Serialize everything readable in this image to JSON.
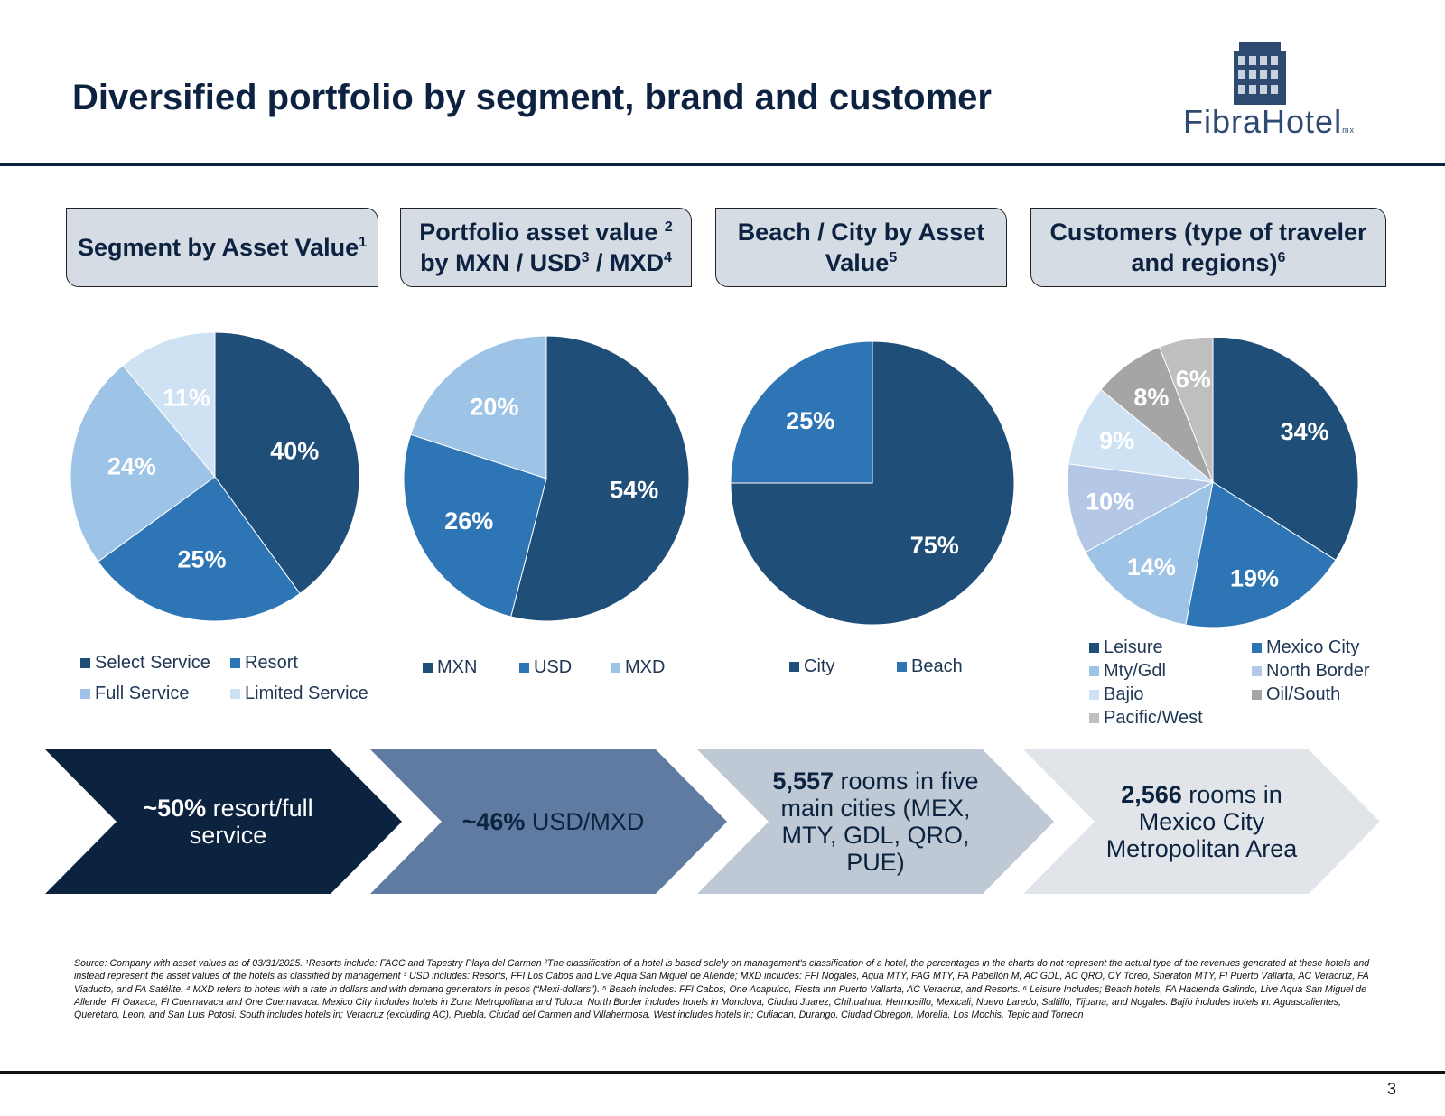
{
  "title": "Diversified portfolio by segment, brand and customer",
  "logo": {
    "text": "FibraHotel",
    "suffix": "mx"
  },
  "colors": {
    "navy": "#1f4e79",
    "blue": "#2e75b6",
    "light_blue": "#9dc3e6",
    "pale_blue": "#bdd7ee",
    "lavender": "#b4c7e7",
    "very_light": "#cfe2f3",
    "gray": "#a5a5a5",
    "light_gray": "#bfbfbf"
  },
  "headers": [
    {
      "text": "Segment by Asset Value",
      "sup": "1"
    },
    {
      "text": "Portfolio asset value ",
      "sup1": "2",
      "text2": " by MXN / USD",
      "sup2": "3",
      "text3": " / MXD",
      "sup3": "4"
    },
    {
      "text": "Beach / City by Asset Value",
      "sup": "5"
    },
    {
      "text": "Customers (type of traveler and regions)",
      "sup": "6"
    }
  ],
  "chart_data": [
    {
      "type": "pie",
      "title": "Segment by Asset Value",
      "categories": [
        "Select Service",
        "Resort",
        "Full Service",
        "Limited Service"
      ],
      "values": [
        40,
        25,
        24,
        11
      ],
      "labels": [
        "40%",
        "25%",
        "24%",
        "11%"
      ],
      "colors": [
        "#1f4e79",
        "#2e75b6",
        "#9dc3e6",
        "#cfe2f3"
      ]
    },
    {
      "type": "pie",
      "title": "Portfolio asset value by MXN / USD / MXD",
      "categories": [
        "MXN",
        "USD",
        "MXD"
      ],
      "values": [
        54,
        26,
        20
      ],
      "labels": [
        "54%",
        "26%",
        "20%"
      ],
      "colors": [
        "#1f4e79",
        "#2e75b6",
        "#9dc3e6"
      ]
    },
    {
      "type": "pie",
      "title": "Beach / City by Asset Value",
      "categories": [
        "City",
        "Beach"
      ],
      "values": [
        75,
        25
      ],
      "labels": [
        "75%",
        "25%"
      ],
      "colors": [
        "#1f4e79",
        "#2e75b6"
      ]
    },
    {
      "type": "pie",
      "title": "Customers (type of traveler and regions)",
      "categories": [
        "Leisure",
        "Mexico City",
        "Mty/Gdl",
        "North Border",
        "Bajio",
        "Oil/South",
        "Pacific/West"
      ],
      "values": [
        34,
        19,
        14,
        10,
        9,
        8,
        6
      ],
      "labels": [
        "34%",
        "19%",
        "14%",
        "10%",
        "9%",
        "8%",
        "6%"
      ],
      "colors": [
        "#1f4e79",
        "#2e75b6",
        "#9dc3e6",
        "#b4c7e7",
        "#cfe2f3",
        "#a5a5a5",
        "#bfbfbf"
      ]
    }
  ],
  "chevrons": [
    {
      "bold": "~50%",
      "rest": " resort/full service",
      "bg": "#0c2340",
      "fg": "#ffffff"
    },
    {
      "bold": "~46%",
      "rest": " USD/MXD",
      "bg": "#5f7ba1",
      "fg": "#0c2340"
    },
    {
      "bold": "5,557",
      "rest": " rooms in five main cities (MEX, MTY, GDL, QRO, PUE)",
      "bg": "#bfc9d6",
      "fg": "#0c2340"
    },
    {
      "bold": "2,566",
      "rest": " rooms in Mexico City Metropolitan Area",
      "bg": "#e1e5ea",
      "fg": "#0c2340"
    }
  ],
  "footnote": "Source: Company with asset values as of 03/31/2025. ¹Resorts include: FACC and Tapestry Playa del Carmen ²The classification of a hotel is based solely on management's classification of a hotel, the percentages in the charts do not represent the actual type of the revenues generated at these hotels and instead represent the asset values of the hotels as classified by management ³ USD includes: Resorts, FFI Los Cabos and Live Aqua San Miguel de Allende; MXD includes: FFI Nogales, Aqua MTY, FAG MTY, FA Pabellón M, AC GDL, AC QRO, CY Toreo, Sheraton MTY, FI Puerto Vallarta, AC Veracruz, FA Viaducto, and FA Satélite. ⁴ MXD refers to hotels with a rate in dollars and with demand generators in pesos (“Mexi-dollars”). ⁵ Beach includes: FFI Cabos, One Acapulco, Fiesta Inn Puerto Vallarta, AC Veracruz, and Resorts. ⁶ Leisure Includes; Beach hotels, FA Hacienda Galindo, Live Aqua San Miguel de Allende, FI Oaxaca, FI Cuernavaca and One Cuernavaca. Mexico City includes hotels in Zona Metropolitana and Toluca. North Border includes hotels in Monclova, Ciudad Juarez, Chihuahua, Hermosillo, Mexicali, Nuevo Laredo, Saltillo, Tijuana, and Nogales. Bajío includes hotels in: Aguascalientes, Queretaro, Leon, and San Luis Potosi. South includes hotels in; Veracruz (excluding AC), Puebla, Ciudad del Carmen and Villahermosa. West includes hotels in; Culiacan, Durango, Ciudad Obregon, Morelia, Los Mochis, Tepic and Torreon",
  "page_number": "3"
}
